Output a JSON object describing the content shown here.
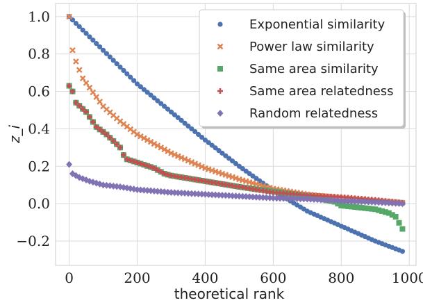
{
  "chart_data": {
    "type": "scatter",
    "xlabel": "theoretical rank",
    "ylabel": "z_i",
    "xlim": [
      -40,
      1020
    ],
    "ylim": [
      -0.33,
      1.07
    ],
    "x_ticks": [
      0,
      200,
      400,
      600,
      800,
      1000
    ],
    "y_ticks": [
      1.0,
      0.8,
      0.6,
      0.4,
      0.2,
      0.0,
      -0.2
    ],
    "y_tick_labels": [
      "1.0",
      "0.8",
      "0.6",
      "0.4",
      "0.2",
      "0.0",
      "−0.2"
    ],
    "grid": true,
    "legend_position": "top-right",
    "series": [
      {
        "name": "Exponential similarity",
        "color": "#4c72b0",
        "marker": "circle",
        "x": [
          0,
          100,
          200,
          300,
          400,
          500,
          600,
          700,
          800,
          900,
          980
        ],
        "y": [
          1.0,
          0.82,
          0.64,
          0.49,
          0.34,
          0.2,
          0.07,
          -0.04,
          -0.12,
          -0.2,
          -0.255
        ]
      },
      {
        "name": "Power law similarity",
        "color": "#dd8452",
        "marker": "x",
        "x": [
          0,
          10,
          20,
          40,
          60,
          100,
          150,
          200,
          300,
          400,
          500,
          600,
          700,
          800,
          900,
          980
        ],
        "y": [
          1.0,
          0.82,
          0.76,
          0.67,
          0.62,
          0.52,
          0.44,
          0.37,
          0.27,
          0.19,
          0.13,
          0.08,
          0.05,
          0.03,
          0.015,
          0.005
        ]
      },
      {
        "name": "Same area similarity",
        "color": "#55a868",
        "marker": "square",
        "x": [
          0,
          10,
          20,
          50,
          80,
          110,
          150,
          165,
          200,
          250,
          280,
          300,
          400,
          500,
          600,
          700,
          780,
          800,
          850,
          900,
          940,
          960,
          980
        ],
        "y": [
          0.63,
          0.6,
          0.54,
          0.49,
          0.41,
          0.37,
          0.3,
          0.24,
          0.22,
          0.19,
          0.16,
          0.15,
          0.12,
          0.09,
          0.065,
          0.04,
          0.01,
          -0.01,
          -0.02,
          -0.03,
          -0.05,
          -0.07,
          -0.135
        ]
      },
      {
        "name": "Same area relatedness",
        "color": "#c44e52",
        "marker": "plus",
        "x": [
          0,
          10,
          20,
          50,
          80,
          110,
          150,
          165,
          200,
          250,
          280,
          300,
          400,
          500,
          600,
          700,
          800,
          900,
          980
        ],
        "y": [
          0.63,
          0.6,
          0.54,
          0.49,
          0.41,
          0.37,
          0.3,
          0.24,
          0.22,
          0.19,
          0.16,
          0.15,
          0.12,
          0.09,
          0.06,
          0.045,
          0.035,
          0.02,
          0.005
        ]
      },
      {
        "name": "Random relatedness",
        "color": "#8172b3",
        "marker": "diamond",
        "x": [
          0,
          10,
          30,
          60,
          100,
          150,
          200,
          300,
          400,
          500,
          600,
          700,
          800,
          900,
          980
        ],
        "y": [
          0.21,
          0.16,
          0.14,
          0.12,
          0.1,
          0.09,
          0.075,
          0.06,
          0.05,
          0.04,
          0.03,
          0.025,
          0.015,
          0.008,
          0.0
        ]
      }
    ]
  }
}
